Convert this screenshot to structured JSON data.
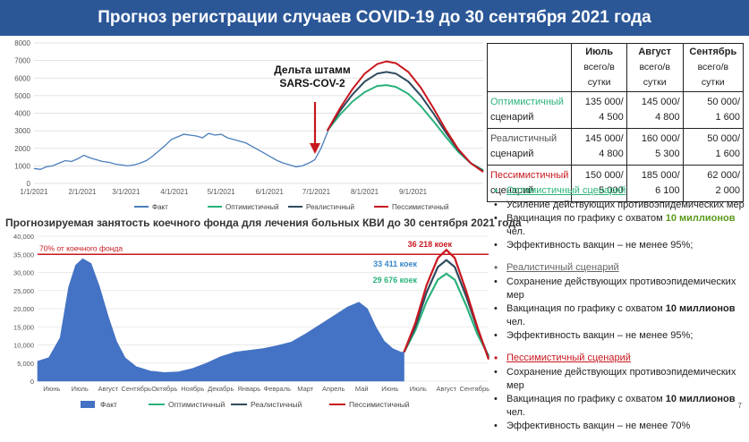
{
  "title": "Прогноз регистрации случаев COVID-19 до 30 сентября 2021 года",
  "colors": {
    "header_bg": "#2b5797",
    "fact": "#4a7ebb",
    "optimistic": "#2ab27b",
    "realistic": "#2e4a5e",
    "pessimistic": "#c8171e",
    "area": "#4472c4"
  },
  "chart_data": [
    {
      "type": "line",
      "yticks": [
        0,
        1000,
        2000,
        3000,
        4000,
        5000,
        6000,
        7000,
        8000
      ],
      "ylim": [
        0,
        8000
      ],
      "xticks": [
        "1/1/2021",
        "2/1/2021",
        "3/1/2021",
        "4/1/2021",
        "5/1/2021",
        "6/1/2021",
        "7/1/2021",
        "8/1/2021",
        "9/1/2021"
      ],
      "grid": true,
      "annotation": "Дельта штамм SARS-COV-2",
      "legend_position": "bottom",
      "series": [
        {
          "name": "Факт",
          "points": [
            [
              0,
              850
            ],
            [
              4,
              800
            ],
            [
              8,
              950
            ],
            [
              12,
              1000
            ],
            [
              16,
              1150
            ],
            [
              20,
              1300
            ],
            [
              24,
              1250
            ],
            [
              28,
              1400
            ],
            [
              32,
              1600
            ],
            [
              36,
              1450
            ],
            [
              40,
              1350
            ],
            [
              44,
              1250
            ],
            [
              48,
              1200
            ],
            [
              52,
              1100
            ],
            [
              56,
              1050
            ],
            [
              60,
              1000
            ],
            [
              64,
              1050
            ],
            [
              68,
              1150
            ],
            [
              72,
              1300
            ],
            [
              76,
              1550
            ],
            [
              80,
              1850
            ],
            [
              84,
              2150
            ],
            [
              88,
              2500
            ],
            [
              92,
              2650
            ],
            [
              96,
              2800
            ],
            [
              100,
              2750
            ],
            [
              104,
              2700
            ],
            [
              108,
              2600
            ],
            [
              112,
              2850
            ],
            [
              116,
              2750
            ],
            [
              120,
              2800
            ],
            [
              124,
              2600
            ],
            [
              128,
              2500
            ],
            [
              132,
              2400
            ],
            [
              136,
              2300
            ],
            [
              140,
              2100
            ],
            [
              144,
              1900
            ],
            [
              148,
              1700
            ],
            [
              152,
              1500
            ],
            [
              156,
              1300
            ],
            [
              160,
              1150
            ],
            [
              164,
              1050
            ],
            [
              168,
              950
            ],
            [
              172,
              1000
            ],
            [
              176,
              1150
            ],
            [
              180,
              1350
            ],
            [
              184,
              2000
            ],
            [
              189,
              3100
            ]
          ]
        },
        {
          "name": "Оптимистичный",
          "points": [
            [
              188,
              3000
            ],
            [
              196,
              3900
            ],
            [
              204,
              4650
            ],
            [
              212,
              5200
            ],
            [
              220,
              5550
            ],
            [
              226,
              5600
            ],
            [
              232,
              5500
            ],
            [
              240,
              5100
            ],
            [
              248,
              4400
            ],
            [
              256,
              3550
            ],
            [
              264,
              2650
            ],
            [
              272,
              1800
            ],
            [
              280,
              1150
            ],
            [
              288,
              750
            ]
          ]
        },
        {
          "name": "Реалистичный",
          "points": [
            [
              188,
              3000
            ],
            [
              196,
              4100
            ],
            [
              204,
              5050
            ],
            [
              212,
              5800
            ],
            [
              220,
              6250
            ],
            [
              226,
              6350
            ],
            [
              232,
              6250
            ],
            [
              240,
              5800
            ],
            [
              248,
              5000
            ],
            [
              256,
              4000
            ],
            [
              264,
              2900
            ],
            [
              272,
              1900
            ],
            [
              280,
              1150
            ],
            [
              288,
              700
            ]
          ]
        },
        {
          "name": "Пессимистичный",
          "points": [
            [
              188,
              3000
            ],
            [
              196,
              4250
            ],
            [
              204,
              5350
            ],
            [
              212,
              6250
            ],
            [
              220,
              6800
            ],
            [
              226,
              6950
            ],
            [
              232,
              6850
            ],
            [
              240,
              6350
            ],
            [
              248,
              5450
            ],
            [
              256,
              4300
            ],
            [
              264,
              3050
            ],
            [
              272,
              1950
            ],
            [
              280,
              1150
            ],
            [
              288,
              650
            ]
          ]
        }
      ]
    },
    {
      "type": "area",
      "title": "Прогнозируемая занятость коечного фонда для лечения больных КВИ до 30 сентября 2021 года",
      "yticks": [
        "0",
        "5,000",
        "10,000",
        "15,000",
        "20,000",
        "25,000",
        "30,000",
        "35,000",
        "40,000"
      ],
      "ylim": [
        0,
        40000
      ],
      "xticks": [
        "Июнь",
        "Июль",
        "Август",
        "Сентябрь",
        "Октябрь",
        "Ноябрь",
        "Декабрь",
        "Январь",
        "Февраль",
        "Март",
        "Апрель",
        "Май",
        "Июнь",
        "Июль",
        "Август",
        "Сентябрь"
      ],
      "reference_line": {
        "value": 35000,
        "label": "70% от коечного фонда"
      },
      "peak_labels": [
        {
          "series": "Пессимистичный",
          "text": "36 218 коек",
          "value": 36218
        },
        {
          "series": "Реалистичный",
          "text": "33 411 коек",
          "value": 33411
        },
        {
          "series": "Оптимистичный",
          "text": "29 676 коек",
          "value": 29676
        }
      ],
      "legend_position": "bottom",
      "series": [
        {
          "name": "Факт",
          "points": [
            [
              0,
              5500
            ],
            [
              0.4,
              6500
            ],
            [
              0.8,
              12000
            ],
            [
              1.1,
              26000
            ],
            [
              1.35,
              32000
            ],
            [
              1.6,
              33800
            ],
            [
              1.9,
              32500
            ],
            [
              2.2,
              26000
            ],
            [
              2.5,
              18000
            ],
            [
              2.8,
              11000
            ],
            [
              3.1,
              6500
            ],
            [
              3.5,
              4000
            ],
            [
              4.0,
              2800
            ],
            [
              4.5,
              2400
            ],
            [
              5.0,
              2600
            ],
            [
              5.5,
              3500
            ],
            [
              6.0,
              5000
            ],
            [
              6.5,
              6800
            ],
            [
              7.0,
              8000
            ],
            [
              7.5,
              8500
            ],
            [
              8.0,
              9000
            ],
            [
              8.5,
              9800
            ],
            [
              9.0,
              10800
            ],
            [
              9.5,
              13000
            ],
            [
              10.0,
              15500
            ],
            [
              10.5,
              18000
            ],
            [
              11.0,
              20500
            ],
            [
              11.4,
              21800
            ],
            [
              11.7,
              20000
            ],
            [
              12.0,
              15000
            ],
            [
              12.3,
              11000
            ],
            [
              12.6,
              9000
            ],
            [
              12.9,
              8000
            ],
            [
              13.0,
              8000
            ]
          ]
        },
        {
          "name": "Оптимистичный",
          "points": [
            [
              13.0,
              8000
            ],
            [
              13.4,
              14000
            ],
            [
              13.8,
              22000
            ],
            [
              14.2,
              28000
            ],
            [
              14.5,
              29676
            ],
            [
              14.8,
              28000
            ],
            [
              15.2,
              21000
            ],
            [
              15.6,
              13000
            ],
            [
              16.0,
              7000
            ]
          ]
        },
        {
          "name": "Реалистичный",
          "points": [
            [
              13.0,
              8000
            ],
            [
              13.4,
              15000
            ],
            [
              13.8,
              24500
            ],
            [
              14.2,
              31500
            ],
            [
              14.5,
              33411
            ],
            [
              14.8,
              31500
            ],
            [
              15.2,
              23500
            ],
            [
              15.6,
              14500
            ],
            [
              16.0,
              6500
            ]
          ]
        },
        {
          "name": "Пессимистичный",
          "points": [
            [
              13.0,
              8000
            ],
            [
              13.4,
              16000
            ],
            [
              13.8,
              26500
            ],
            [
              14.2,
              34000
            ],
            [
              14.5,
              36218
            ],
            [
              14.8,
              34000
            ],
            [
              15.2,
              25000
            ],
            [
              15.6,
              15000
            ],
            [
              16.0,
              6000
            ]
          ]
        }
      ]
    }
  ],
  "table": {
    "headers": [
      {
        "month": "Июль",
        "sub": "всего/в сутки"
      },
      {
        "month": "Август",
        "sub": "всего/в сутки"
      },
      {
        "month": "Сентябрь",
        "sub": "всего/в сутки"
      }
    ],
    "rows": [
      {
        "line1": "Оптимистичный",
        "line2": "сценарий",
        "color": "#2ab27b",
        "values": [
          [
            "135 000/",
            "4 500"
          ],
          [
            "145 000/",
            "4 800"
          ],
          [
            "50 000/",
            "1 600"
          ]
        ]
      },
      {
        "line1": "Реалистичный",
        "line2": "сценарий",
        "color": "#555555",
        "values": [
          [
            "145 000/",
            "4 800"
          ],
          [
            "160 000/",
            "5 300"
          ],
          [
            "50 000/",
            "1 600"
          ]
        ]
      },
      {
        "line1": "Пессимистичный",
        "line2": "сценарий",
        "color": "#c8171e",
        "values": [
          [
            "150 000/",
            "5 000"
          ],
          [
            "185 000/",
            "6 100"
          ],
          [
            "62 000/",
            "2 000"
          ]
        ]
      }
    ]
  },
  "scenarios": [
    {
      "name": "Оптимистичный сценарий",
      "color": "#2ab27b",
      "items": [
        {
          "text": "Усиление действующих противоэпидемических мер"
        },
        {
          "pre": "Вакцинация по графику с охватом ",
          "hl": "10 миллионов",
          "post": " чел.",
          "hl_color": "#5a9a1a"
        },
        {
          "text": "Эффективность вакцин – не менее 95%;"
        }
      ]
    },
    {
      "name": "Реалистичный сценарий",
      "color": "#666666",
      "items": [
        {
          "text": "Сохранение действующих противоэпидемических мер"
        },
        {
          "pre": "Вакцинация по графику с охватом ",
          "hl": "10 миллионов",
          "post": " чел.",
          "hl_color": "#111111"
        },
        {
          "text": "Эффективность вакцин – не менее 95%;"
        }
      ]
    },
    {
      "name": "Пессимистичный сценарий",
      "color": "#c8171e",
      "items": [
        {
          "text": "Сохранение действующих противоэпидемических мер"
        },
        {
          "pre": "Вакцинация по графику с охватом ",
          "hl": "10 миллионов",
          "post": " чел.",
          "hl_color": "#111111"
        },
        {
          "text": "Эффективность вакцин – не менее 70%"
        }
      ]
    }
  ],
  "page_number": "7"
}
